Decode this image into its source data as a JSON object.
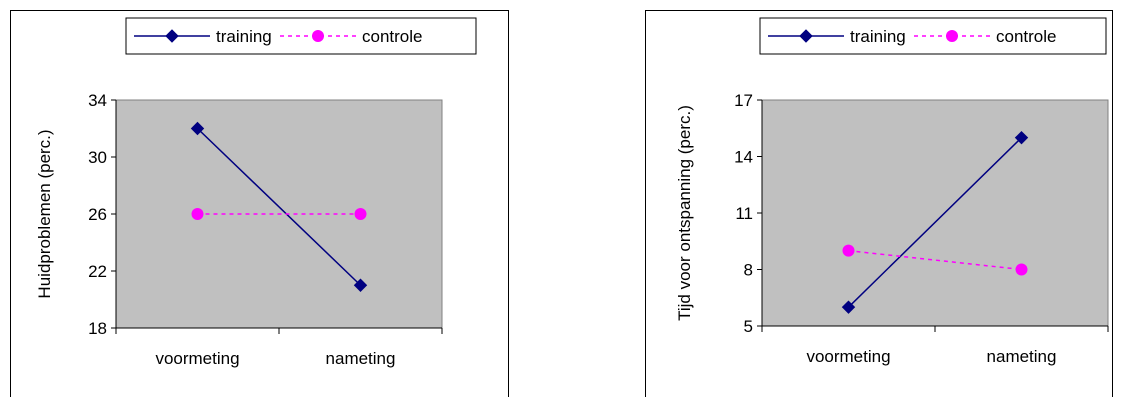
{
  "chart_data": [
    {
      "type": "line",
      "categories": [
        "voormeting",
        "nameting"
      ],
      "series": [
        {
          "name": "training",
          "values": [
            32,
            21
          ],
          "color": "#000080",
          "style": "solid",
          "marker": "diamond"
        },
        {
          "name": "controle",
          "values": [
            26,
            26
          ],
          "color": "#ff00ff",
          "style": "dashed",
          "marker": "circle"
        }
      ],
      "ylabel": "Huidproblemen (perc.)",
      "ylim": [
        18,
        34
      ],
      "yticks": [
        18,
        22,
        26,
        30,
        34
      ],
      "plot_background": "#c0c0c0",
      "legend_position": "top",
      "grid": false
    },
    {
      "type": "line",
      "categories": [
        "voormeting",
        "nameting"
      ],
      "series": [
        {
          "name": "training",
          "values": [
            6,
            15
          ],
          "color": "#000080",
          "style": "solid",
          "marker": "diamond"
        },
        {
          "name": "controle",
          "values": [
            9,
            8
          ],
          "color": "#ff00ff",
          "style": "dashed",
          "marker": "circle"
        }
      ],
      "ylabel": "Tijd voor ontspanning (perc.)",
      "ylim": [
        5,
        17
      ],
      "yticks": [
        5,
        8,
        11,
        14,
        17
      ],
      "plot_background": "#c0c0c0",
      "legend_position": "top",
      "grid": false
    }
  ]
}
